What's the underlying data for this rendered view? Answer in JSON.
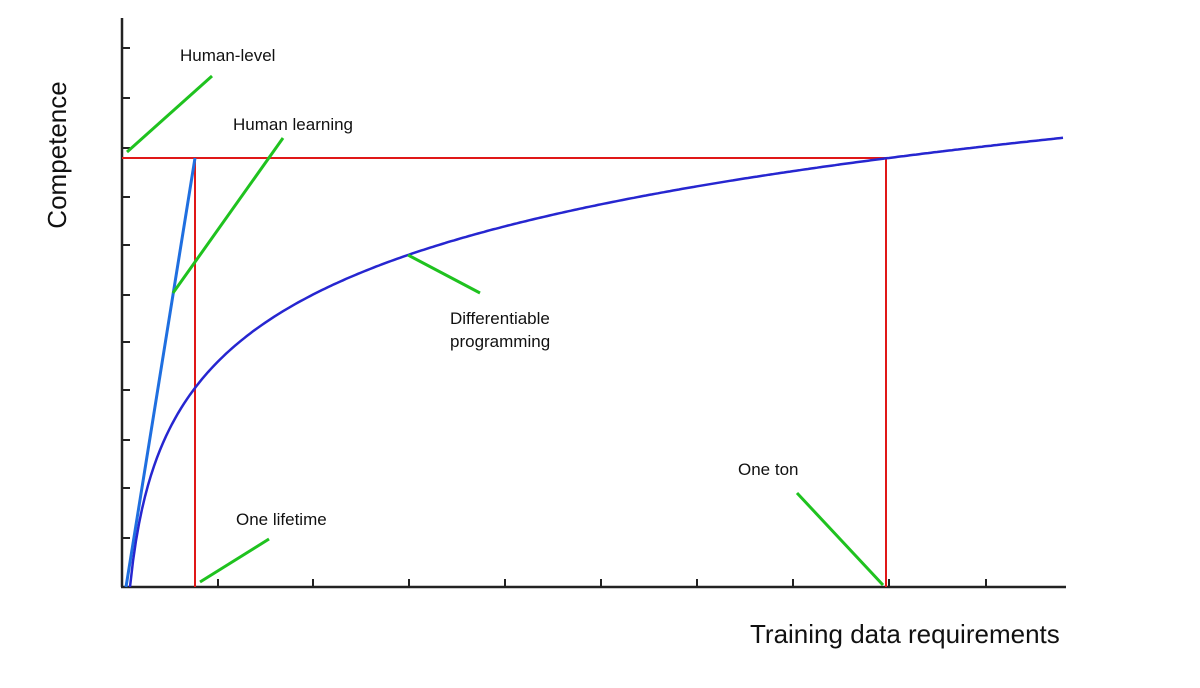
{
  "axes": {
    "y_label": "Competence",
    "x_label": "Training data requirements"
  },
  "annotations": {
    "human_level": "Human-level",
    "human_learning": "Human learning",
    "differentiable_programming": [
      "Differentiable",
      "programming"
    ],
    "one_lifetime": "One lifetime",
    "one_ton": "One ton"
  }
}
